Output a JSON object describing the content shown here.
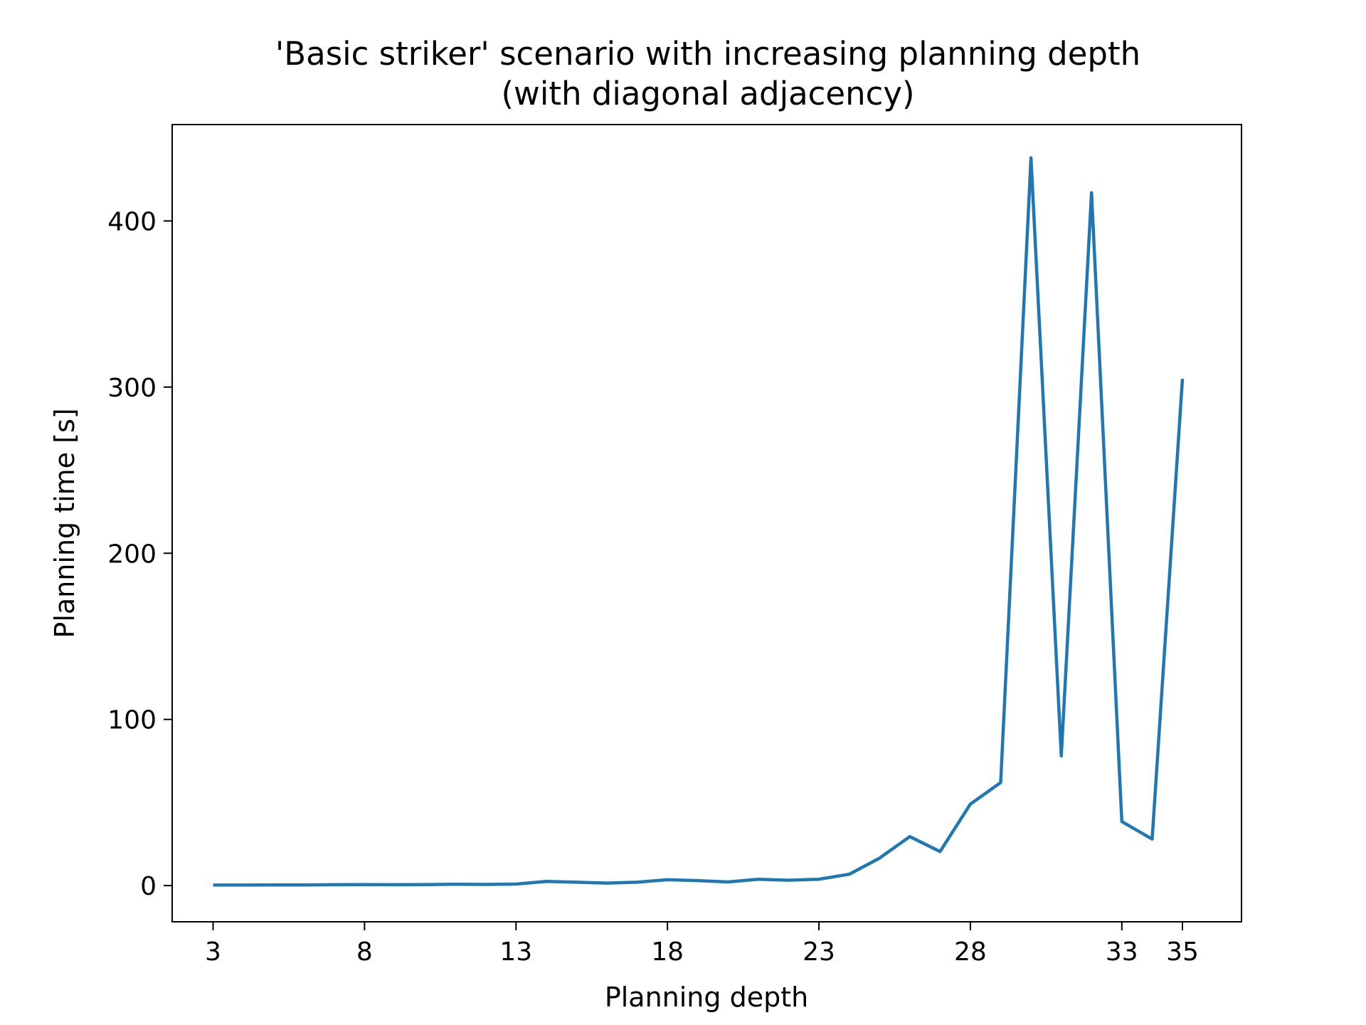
{
  "chart_data": {
    "type": "line",
    "title_lines": [
      "'Basic striker' scenario with increasing planning depth",
      "(with diagonal adjacency)"
    ],
    "xlabel": "Planning depth",
    "ylabel": "Planning time [s]",
    "xlim": [
      1.65,
      36.95
    ],
    "ylim": [
      -21.8,
      458
    ],
    "x_ticks": [
      3,
      8,
      13,
      18,
      23,
      28,
      33,
      35
    ],
    "y_ticks": [
      0,
      100,
      200,
      300,
      400
    ],
    "grid": false,
    "legend": "none",
    "series": [
      {
        "color": "#1f77b4",
        "x": [
          3,
          4,
          5,
          6,
          7,
          8,
          9,
          10,
          11,
          12,
          13,
          14,
          15,
          16,
          17,
          18,
          19,
          20,
          21,
          22,
          23,
          24,
          25,
          26,
          27,
          28,
          29,
          30,
          31,
          32,
          33,
          34,
          35
        ],
        "y": [
          0.3,
          0.3,
          0.4,
          0.4,
          0.5,
          0.6,
          0.5,
          0.6,
          0.8,
          0.7,
          0.9,
          2.5,
          2.0,
          1.5,
          2.0,
          3.5,
          3.0,
          2.2,
          3.8,
          3.2,
          3.8,
          6.8,
          16.5,
          29.5,
          20.5,
          49.0,
          62.0,
          438.0,
          78.0,
          417.0,
          38.5,
          28.0,
          305.0
        ]
      }
    ]
  }
}
